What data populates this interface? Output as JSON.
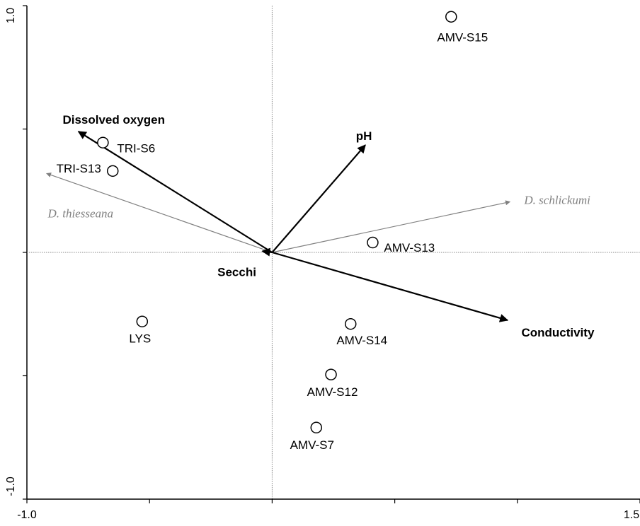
{
  "chart_data": {
    "type": "scatter",
    "title": "",
    "xlabel": "",
    "ylabel": "",
    "xlim": [
      -1.0,
      1.5
    ],
    "ylim": [
      -1.0,
      1.0
    ],
    "x_tick_labels": [
      "-1.0",
      "1.5"
    ],
    "y_tick_labels": [
      "1.0",
      "-1.0"
    ],
    "x_ticks": [
      -1.0,
      -0.5,
      0.0,
      0.5,
      1.0,
      1.5
    ],
    "y_ticks": [
      1.0,
      0.5,
      0.0,
      -0.5,
      -1.0
    ],
    "grid": false,
    "reference_lines": [
      0,
      0
    ],
    "sites": [
      {
        "label": "AMV-S15",
        "x": 0.73,
        "y": 0.955
      },
      {
        "label": "TRI-S6",
        "x": -0.69,
        "y": 0.445
      },
      {
        "label": "TRI-S13",
        "x": -0.65,
        "y": 0.33
      },
      {
        "label": "AMV-S13",
        "x": 0.41,
        "y": 0.04
      },
      {
        "label": "LYS",
        "x": -0.53,
        "y": -0.28
      },
      {
        "label": "AMV-S14",
        "x": 0.32,
        "y": -0.29
      },
      {
        "label": "AMV-S12",
        "x": 0.24,
        "y": -0.495
      },
      {
        "label": "AMV-S7",
        "x": 0.18,
        "y": -0.71
      }
    ],
    "environmental_vectors": [
      {
        "label": "Dissolved oxygen",
        "x": -0.79,
        "y": 0.49
      },
      {
        "label": "pH",
        "x": 0.38,
        "y": 0.435
      },
      {
        "label": "Conductivity",
        "x": 0.96,
        "y": -0.275
      },
      {
        "label": "Secchi",
        "x": -0.04,
        "y": 0.005
      }
    ],
    "species_vectors": [
      {
        "label": "D. thiesseana",
        "x": -0.92,
        "y": 0.32
      },
      {
        "label": "D. schlickumi",
        "x": 0.97,
        "y": 0.205
      }
    ],
    "colors": {
      "environmental": "#000000",
      "species": "#808080",
      "reference": "#888888"
    }
  }
}
